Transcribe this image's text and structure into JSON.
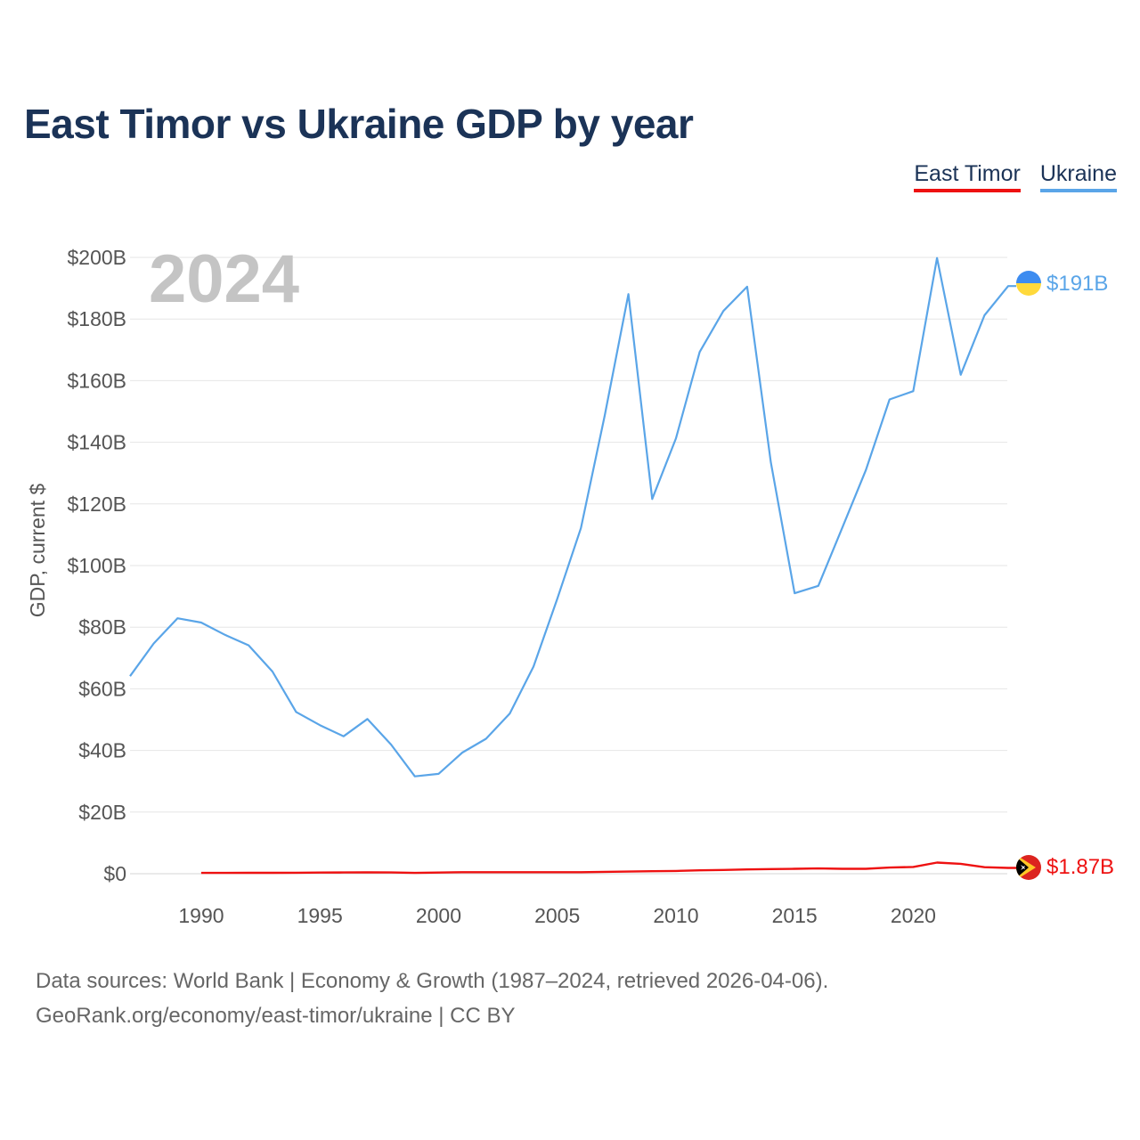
{
  "title": "East Timor vs Ukraine GDP by year",
  "legend": [
    {
      "label": "East Timor",
      "color": "#ee1111"
    },
    {
      "label": "Ukraine",
      "color": "#5aa5e8"
    }
  ],
  "year_overlay": "2024",
  "footer": {
    "line1": "Data sources: World Bank | Economy & Growth (1987–2024, retrieved 2026-04-06).",
    "line2": "GeoRank.org/economy/east-timor/ukraine | CC BY"
  },
  "end_labels": {
    "ukraine": "$191B",
    "east_timor": "$1.87B"
  },
  "chart_data": {
    "type": "line",
    "title": "East Timor vs Ukraine GDP by year",
    "xlabel": "",
    "ylabel": "GDP, current $",
    "xlim": [
      1987,
      2024
    ],
    "ylim": [
      0,
      200
    ],
    "y_unit": "billions USD",
    "y_ticks": [
      {
        "value": 0,
        "label": "$0"
      },
      {
        "value": 20,
        "label": "$20B"
      },
      {
        "value": 40,
        "label": "$40B"
      },
      {
        "value": 60,
        "label": "$60B"
      },
      {
        "value": 80,
        "label": "$80B"
      },
      {
        "value": 100,
        "label": "$100B"
      },
      {
        "value": 120,
        "label": "$120B"
      },
      {
        "value": 140,
        "label": "$140B"
      },
      {
        "value": 160,
        "label": "$160B"
      },
      {
        "value": 180,
        "label": "$180B"
      },
      {
        "value": 200,
        "label": "$200B"
      }
    ],
    "x_ticks": [
      1990,
      1995,
      2000,
      2005,
      2010,
      2015,
      2020
    ],
    "grid": true,
    "legend_position": "top-right",
    "series": [
      {
        "name": "Ukraine",
        "color": "#5aa5e8",
        "x": [
          1987,
          1988,
          1989,
          1990,
          1991,
          1992,
          1993,
          1994,
          1995,
          1996,
          1997,
          1998,
          1999,
          2000,
          2001,
          2002,
          2003,
          2004,
          2005,
          2006,
          2007,
          2008,
          2009,
          2010,
          2011,
          2012,
          2013,
          2014,
          2015,
          2016,
          2017,
          2018,
          2019,
          2020,
          2021,
          2022,
          2023,
          2024
        ],
        "values": [
          64.1,
          74.7,
          82.9,
          81.5,
          77.5,
          74.1,
          65.6,
          52.5,
          48.2,
          44.6,
          50.2,
          41.9,
          31.6,
          32.4,
          39.3,
          43.8,
          52.0,
          67.2,
          89.2,
          112.2,
          148.7,
          188.1,
          121.6,
          141.2,
          169.3,
          182.6,
          190.5,
          133.5,
          91.0,
          93.4,
          112.1,
          130.9,
          153.9,
          156.6,
          199.8,
          161.9,
          181.2,
          190.7
        ]
      },
      {
        "name": "East Timor",
        "color": "#ee1111",
        "x": [
          1990,
          1991,
          1992,
          1993,
          1994,
          1995,
          1996,
          1997,
          1998,
          1999,
          2000,
          2001,
          2002,
          2003,
          2004,
          2005,
          2006,
          2007,
          2008,
          2009,
          2010,
          2011,
          2012,
          2013,
          2014,
          2015,
          2016,
          2017,
          2018,
          2019,
          2020,
          2021,
          2022,
          2023,
          2024
        ],
        "values": [
          0.26,
          0.25,
          0.29,
          0.3,
          0.33,
          0.37,
          0.41,
          0.43,
          0.4,
          0.27,
          0.37,
          0.48,
          0.5,
          0.5,
          0.49,
          0.48,
          0.5,
          0.6,
          0.7,
          0.8,
          0.9,
          1.1,
          1.2,
          1.4,
          1.5,
          1.6,
          1.7,
          1.6,
          1.6,
          2.0,
          2.2,
          3.6,
          3.2,
          2.1,
          1.87
        ]
      }
    ]
  }
}
